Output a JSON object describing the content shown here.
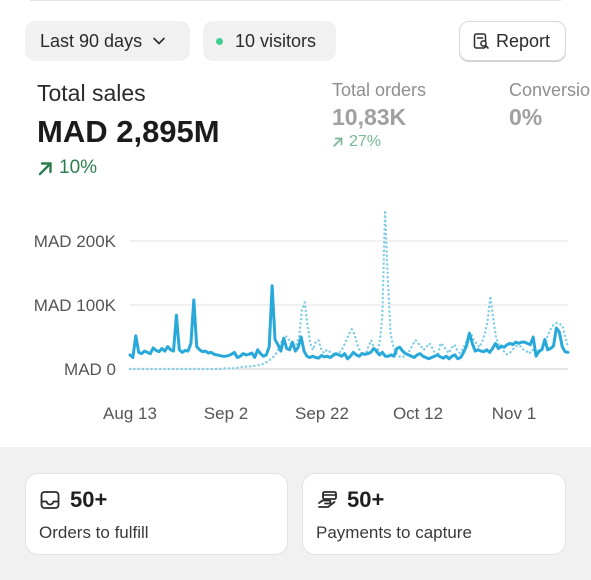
{
  "filters": {
    "date_range_label": "Last 90 days",
    "visitors_label": "10 visitors",
    "report_label": "Report"
  },
  "metrics": {
    "total_sales": {
      "label": "Total sales",
      "value": "MAD 2,895M",
      "change": "10%"
    },
    "total_orders": {
      "label": "Total orders",
      "value": "10,83K",
      "change": "27%"
    },
    "conversion": {
      "label": "Conversio",
      "value": "0%"
    }
  },
  "icons": {
    "date_dropdown": "chevron-down-icon",
    "visitors": "online-dot-icon",
    "report": "report-icon",
    "sales_change": "arrow-up-right-icon",
    "orders_change": "arrow-up-right-icon",
    "orders_task": "inbox-icon",
    "payments_task": "payment-icon"
  },
  "colors": {
    "accent": "#29a9d9",
    "positive": "#2e7d4f",
    "visitors_dot": "#3fcf8e"
  },
  "chart_data": {
    "type": "line",
    "x_ticks": [
      "Aug 13",
      "Sep 2",
      "Sep 22",
      "Oct 12",
      "Nov 1"
    ],
    "y_ticks": [
      "MAD 0",
      "MAD 100K",
      "MAD 200K"
    ],
    "ylim": [
      0,
      200000
    ],
    "grid": true,
    "legend": "none",
    "series": [
      {
        "style": "solid",
        "values": [
          22000,
          18000,
          52000,
          26000,
          24000,
          28000,
          26000,
          24000,
          33000,
          29000,
          27000,
          32000,
          28000,
          35000,
          30000,
          28000,
          84000,
          30000,
          26000,
          29000,
          28000,
          40000,
          108000,
          35000,
          30000,
          27000,
          28000,
          25000,
          26000,
          23000,
          22000,
          21000,
          20000,
          20000,
          21000,
          23000,
          26000,
          18000,
          20000,
          24000,
          22000,
          23000,
          25000,
          18000,
          30000,
          24000,
          20000,
          22000,
          35000,
          130000,
          46000,
          38000,
          28000,
          48000,
          32000,
          30000,
          42000,
          28000,
          34000,
          50000,
          28000,
          20000,
          18000,
          20000,
          18000,
          17000,
          21000,
          19000,
          20000,
          18000,
          21000,
          24000,
          22000,
          20000,
          24000,
          16000,
          20000,
          26000,
          22000,
          20000,
          24000,
          23000,
          24000,
          26000,
          32000,
          28000,
          22000,
          26000,
          20000,
          20000,
          22000,
          20000,
          32000,
          34000,
          28000,
          24000,
          22000,
          20000,
          18000,
          22000,
          24000,
          20000,
          18000,
          16000,
          18000,
          20000,
          22000,
          19000,
          17000,
          20000,
          16000,
          20000,
          22000,
          16000,
          18000,
          26000,
          36000,
          56000,
          40000,
          28000,
          30000,
          28000,
          27000,
          30000,
          26000,
          32000,
          40000,
          32000,
          36000,
          34000,
          38000,
          40000,
          38000,
          42000,
          40000,
          42000,
          42000,
          40000,
          38000,
          50000,
          20000,
          28000,
          30000,
          46000,
          30000,
          32000,
          36000,
          64000,
          58000,
          35000,
          27000,
          26000
        ]
      },
      {
        "style": "dotted",
        "values": [
          0,
          0,
          0,
          0,
          0,
          0,
          0,
          0,
          0,
          0,
          0,
          0,
          0,
          0,
          0,
          0,
          0,
          0,
          0,
          0,
          0,
          0,
          0,
          0,
          0,
          0,
          0,
          0,
          0,
          0,
          0,
          0,
          0,
          0,
          1000,
          1000,
          1000,
          1000,
          2000,
          2000,
          3000,
          3000,
          4000,
          4000,
          4000,
          5000,
          6000,
          6000,
          8000,
          10000,
          13000,
          16000,
          20000,
          26000,
          35000,
          46000,
          52000,
          48000,
          40000,
          34000,
          38000,
          50000,
          92000,
          104000,
          70000,
          40000,
          30000,
          42000,
          45000,
          30000,
          25000,
          30000,
          27000,
          25000,
          21000,
          25000,
          27000,
          35000,
          45000,
          55000,
          62000,
          54000,
          38000,
          28000,
          22000,
          22000,
          35000,
          45000,
          33000,
          25000,
          40000,
          80000,
          248000,
          140000,
          55000,
          35000,
          25000,
          20000,
          18000,
          20000,
          22000,
          30000,
          38000,
          45000,
          40000,
          35000,
          30000,
          35000,
          40000,
          33000,
          25000,
          20000,
          40000,
          37000,
          30000,
          25000,
          33000,
          38000,
          30000,
          25000,
          30000,
          40000,
          50000,
          56000,
          45000,
          40000,
          34000,
          42000,
          55000,
          75000,
          114000,
          80000,
          50000,
          38000,
          33000,
          27000,
          23000,
          25000,
          30000,
          35000,
          37000,
          35000,
          30000,
          28000,
          24000,
          30000,
          28000,
          24000,
          27000,
          33000,
          45000,
          55000,
          65000,
          70000,
          72000,
          70000,
          68000,
          50000,
          35000
        ]
      }
    ]
  },
  "tasks": [
    {
      "count": "50+",
      "label": "Orders to fulfill"
    },
    {
      "count": "50+",
      "label": "Payments to capture"
    }
  ]
}
